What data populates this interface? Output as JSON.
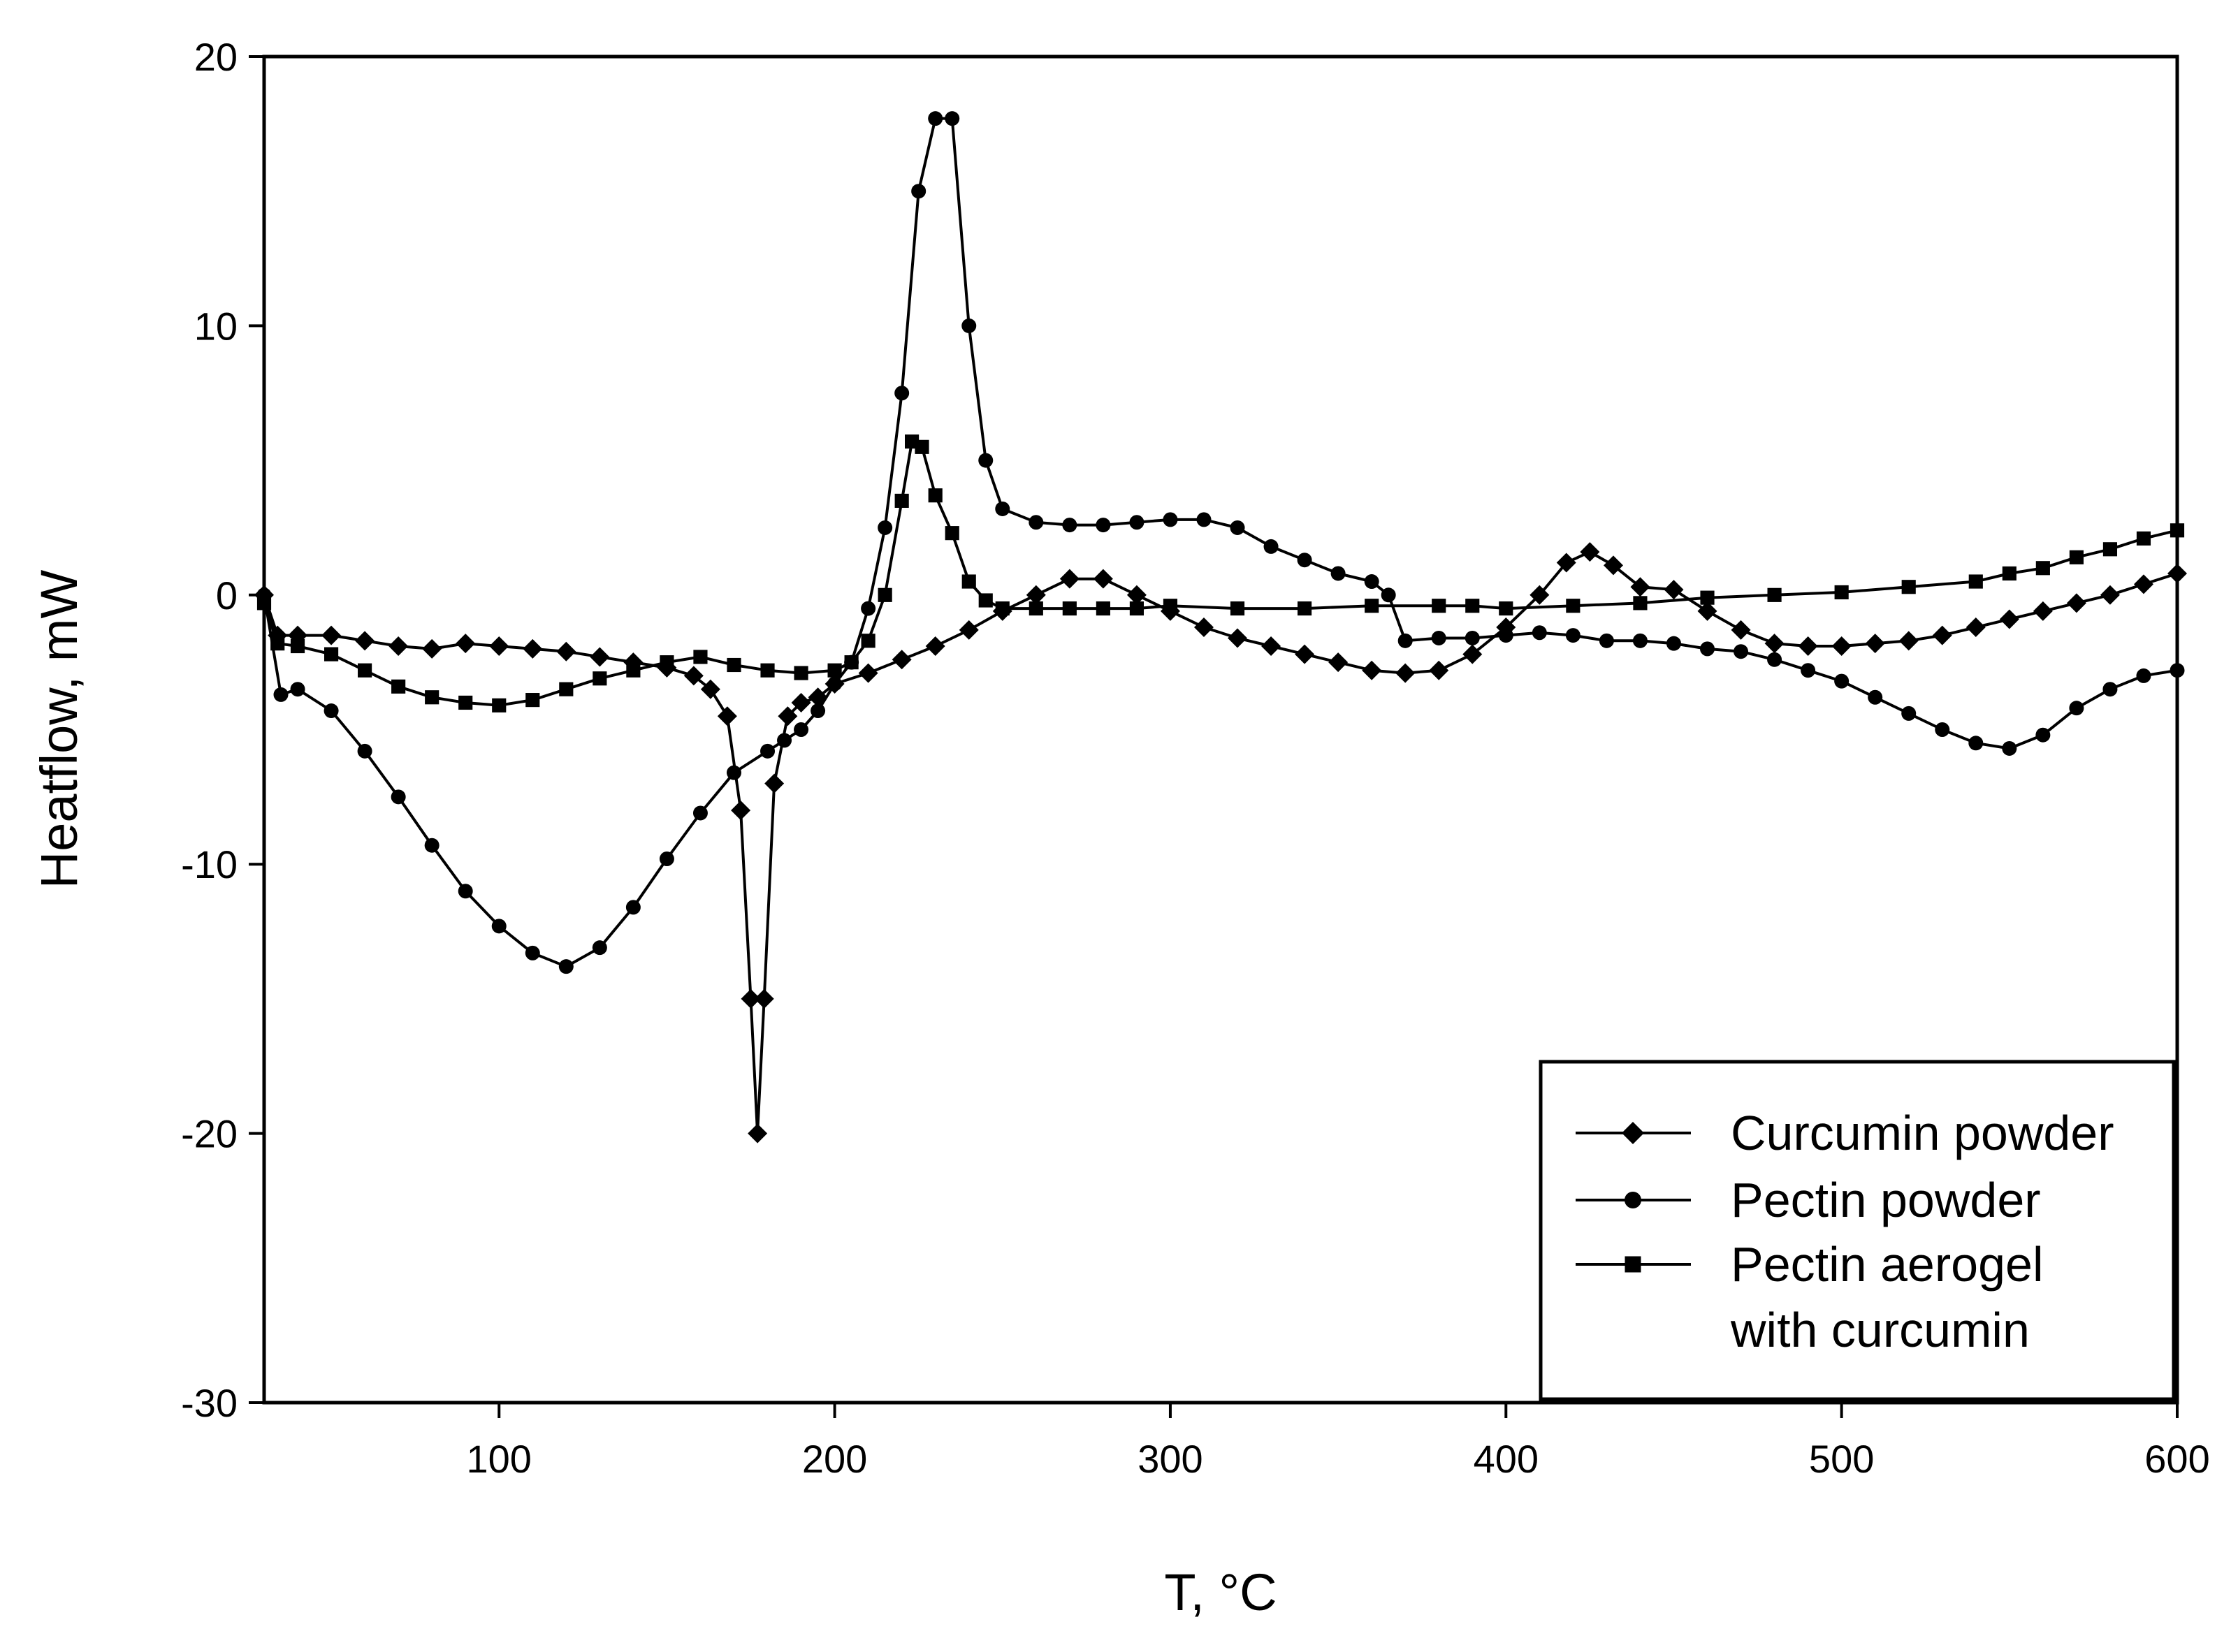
{
  "chart_data": {
    "type": "line",
    "title": "",
    "xlabel": "T, °C",
    "ylabel": "Heatflow, mW",
    "xlim": [
      30,
      600
    ],
    "ylim": [
      -30,
      20
    ],
    "x_ticks": [
      100,
      200,
      300,
      400,
      500,
      600
    ],
    "y_ticks": [
      20,
      10,
      0,
      -10,
      -20,
      -30
    ],
    "grid": false,
    "legend_position": "bottom-right",
    "series": [
      {
        "name": "Curcumin powder",
        "marker": "diamond",
        "points": [
          [
            30,
            0
          ],
          [
            34,
            -1.5
          ],
          [
            40,
            -1.5
          ],
          [
            50,
            -1.5
          ],
          [
            60,
            -1.7
          ],
          [
            70,
            -1.9
          ],
          [
            80,
            -2.0
          ],
          [
            90,
            -1.8
          ],
          [
            100,
            -1.9
          ],
          [
            110,
            -2.0
          ],
          [
            120,
            -2.1
          ],
          [
            130,
            -2.3
          ],
          [
            140,
            -2.5
          ],
          [
            150,
            -2.7
          ],
          [
            158,
            -3.0
          ],
          [
            163,
            -3.5
          ],
          [
            168,
            -4.5
          ],
          [
            172,
            -8.0
          ],
          [
            175,
            -15.0
          ],
          [
            177,
            -20.0
          ],
          [
            179,
            -15.0
          ],
          [
            182,
            -7.0
          ],
          [
            186,
            -4.5
          ],
          [
            190,
            -4.0
          ],
          [
            195,
            -3.8
          ],
          [
            200,
            -3.3
          ],
          [
            210,
            -2.9
          ],
          [
            220,
            -2.4
          ],
          [
            230,
            -1.9
          ],
          [
            240,
            -1.3
          ],
          [
            250,
            -0.6
          ],
          [
            260,
            0.0
          ],
          [
            270,
            0.6
          ],
          [
            280,
            0.6
          ],
          [
            290,
            0.0
          ],
          [
            300,
            -0.6
          ],
          [
            310,
            -1.2
          ],
          [
            320,
            -1.6
          ],
          [
            330,
            -1.9
          ],
          [
            340,
            -2.2
          ],
          [
            350,
            -2.5
          ],
          [
            360,
            -2.8
          ],
          [
            370,
            -2.9
          ],
          [
            380,
            -2.8
          ],
          [
            390,
            -2.2
          ],
          [
            400,
            -1.2
          ],
          [
            410,
            0.0
          ],
          [
            418,
            1.2
          ],
          [
            425,
            1.6
          ],
          [
            432,
            1.1
          ],
          [
            440,
            0.3
          ],
          [
            450,
            0.2
          ],
          [
            460,
            -0.6
          ],
          [
            470,
            -1.3
          ],
          [
            480,
            -1.8
          ],
          [
            490,
            -1.9
          ],
          [
            500,
            -1.9
          ],
          [
            510,
            -1.8
          ],
          [
            520,
            -1.7
          ],
          [
            530,
            -1.5
          ],
          [
            540,
            -1.2
          ],
          [
            550,
            -0.9
          ],
          [
            560,
            -0.6
          ],
          [
            570,
            -0.3
          ],
          [
            580,
            0.0
          ],
          [
            590,
            0.4
          ],
          [
            600,
            0.8
          ]
        ]
      },
      {
        "name": "Pectin powder",
        "marker": "circle",
        "points": [
          [
            30,
            0
          ],
          [
            35,
            -3.7
          ],
          [
            40,
            -3.5
          ],
          [
            50,
            -4.3
          ],
          [
            60,
            -5.8
          ],
          [
            70,
            -7.5
          ],
          [
            80,
            -9.3
          ],
          [
            90,
            -11.0
          ],
          [
            100,
            -12.3
          ],
          [
            110,
            -13.3
          ],
          [
            120,
            -13.8
          ],
          [
            130,
            -13.1
          ],
          [
            140,
            -11.6
          ],
          [
            150,
            -9.8
          ],
          [
            160,
            -8.1
          ],
          [
            170,
            -6.6
          ],
          [
            180,
            -5.8
          ],
          [
            185,
            -5.4
          ],
          [
            190,
            -5.0
          ],
          [
            195,
            -4.3
          ],
          [
            200,
            -3.3
          ],
          [
            205,
            -2.5
          ],
          [
            210,
            -0.5
          ],
          [
            215,
            2.5
          ],
          [
            220,
            7.5
          ],
          [
            225,
            15.0
          ],
          [
            230,
            17.7
          ],
          [
            235,
            17.7
          ],
          [
            240,
            10.0
          ],
          [
            245,
            5.0
          ],
          [
            250,
            3.2
          ],
          [
            260,
            2.7
          ],
          [
            270,
            2.6
          ],
          [
            280,
            2.6
          ],
          [
            290,
            2.7
          ],
          [
            300,
            2.8
          ],
          [
            310,
            2.8
          ],
          [
            320,
            2.5
          ],
          [
            330,
            1.8
          ],
          [
            340,
            1.3
          ],
          [
            350,
            0.8
          ],
          [
            360,
            0.5
          ],
          [
            365,
            0.0
          ],
          [
            370,
            -1.7
          ],
          [
            380,
            -1.6
          ],
          [
            390,
            -1.6
          ],
          [
            400,
            -1.5
          ],
          [
            410,
            -1.4
          ],
          [
            420,
            -1.5
          ],
          [
            430,
            -1.7
          ],
          [
            440,
            -1.7
          ],
          [
            450,
            -1.8
          ],
          [
            460,
            -2.0
          ],
          [
            470,
            -2.1
          ],
          [
            480,
            -2.4
          ],
          [
            490,
            -2.8
          ],
          [
            500,
            -3.2
          ],
          [
            510,
            -3.8
          ],
          [
            520,
            -4.4
          ],
          [
            530,
            -5.0
          ],
          [
            540,
            -5.5
          ],
          [
            550,
            -5.7
          ],
          [
            560,
            -5.2
          ],
          [
            570,
            -4.2
          ],
          [
            580,
            -3.5
          ],
          [
            590,
            -3.0
          ],
          [
            600,
            -2.8
          ]
        ]
      },
      {
        "name": "Pectin aerogel with curcumin",
        "marker": "square",
        "points": [
          [
            30,
            -0.3
          ],
          [
            34,
            -1.8
          ],
          [
            40,
            -1.9
          ],
          [
            50,
            -2.2
          ],
          [
            60,
            -2.8
          ],
          [
            70,
            -3.4
          ],
          [
            80,
            -3.8
          ],
          [
            90,
            -4.0
          ],
          [
            100,
            -4.1
          ],
          [
            110,
            -3.9
          ],
          [
            120,
            -3.5
          ],
          [
            130,
            -3.1
          ],
          [
            140,
            -2.8
          ],
          [
            150,
            -2.5
          ],
          [
            160,
            -2.3
          ],
          [
            170,
            -2.6
          ],
          [
            180,
            -2.8
          ],
          [
            190,
            -2.9
          ],
          [
            200,
            -2.8
          ],
          [
            205,
            -2.5
          ],
          [
            210,
            -1.7
          ],
          [
            215,
            0.0
          ],
          [
            220,
            3.5
          ],
          [
            223,
            5.7
          ],
          [
            226,
            5.5
          ],
          [
            230,
            3.7
          ],
          [
            235,
            2.3
          ],
          [
            240,
            0.5
          ],
          [
            245,
            -0.2
          ],
          [
            250,
            -0.5
          ],
          [
            260,
            -0.5
          ],
          [
            270,
            -0.5
          ],
          [
            280,
            -0.5
          ],
          [
            290,
            -0.5
          ],
          [
            300,
            -0.4
          ],
          [
            320,
            -0.5
          ],
          [
            340,
            -0.5
          ],
          [
            360,
            -0.4
          ],
          [
            380,
            -0.4
          ],
          [
            390,
            -0.4
          ],
          [
            400,
            -0.5
          ],
          [
            420,
            -0.4
          ],
          [
            440,
            -0.3
          ],
          [
            460,
            -0.1
          ],
          [
            480,
            0.0
          ],
          [
            500,
            0.1
          ],
          [
            520,
            0.3
          ],
          [
            540,
            0.5
          ],
          [
            550,
            0.8
          ],
          [
            560,
            1.0
          ],
          [
            570,
            1.4
          ],
          [
            580,
            1.7
          ],
          [
            590,
            2.1
          ],
          [
            600,
            2.4
          ]
        ]
      }
    ]
  }
}
